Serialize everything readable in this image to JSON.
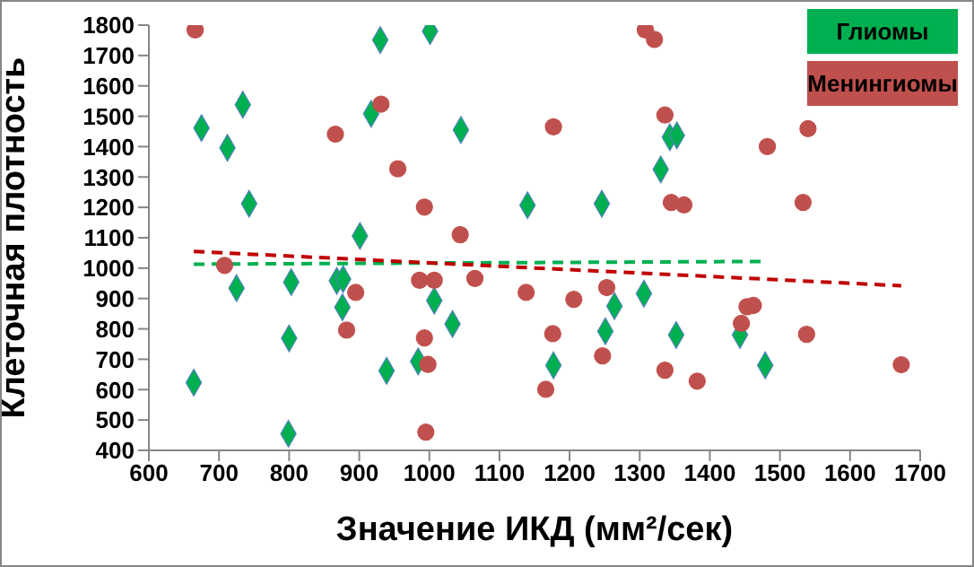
{
  "chart_data": {
    "type": "scatter",
    "xlabel": "Значение ИКД (мм²/сек)",
    "ylabel": "Клеточная плотность",
    "xlim": [
      600,
      1700
    ],
    "xticks": [
      600,
      700,
      800,
      900,
      1000,
      1100,
      1200,
      1300,
      1400,
      1500,
      1600,
      1700
    ],
    "ylim": [
      400,
      1800
    ],
    "yticks": [
      400,
      500,
      600,
      700,
      800,
      900,
      1000,
      1100,
      1200,
      1300,
      1400,
      1500,
      1600,
      1700,
      1800
    ],
    "grid": false,
    "legend": "top right",
    "series": [
      {
        "name": "Глиомы",
        "color": "#00b050",
        "marker": "diamond",
        "x": [
          930,
          1001,
          734,
          675,
          917,
          1045,
          712,
          743,
          1140,
          901,
          1246,
          1343,
          1353,
          1330,
          664,
          725,
          803,
          868,
          877,
          876,
          800,
          799,
          939,
          1007,
          1033,
          984,
          1177,
          1251,
          1264,
          1306,
          1352,
          1443,
          1479
        ],
        "values": [
          1751,
          1780,
          1538,
          1461,
          1508,
          1455,
          1396,
          1212,
          1207,
          1106,
          1212,
          1431,
          1437,
          1325,
          623,
          934,
          954,
          958,
          964,
          871,
          769,
          455,
          662,
          893,
          816,
          693,
          680,
          792,
          875,
          916,
          780,
          780,
          680
        ]
      },
      {
        "name": "Менингиомы",
        "color": "#c0504d",
        "marker": "circle",
        "x": [
          666,
          866,
          931,
          955,
          993,
          1044,
          1177,
          1308,
          1321,
          1336,
          1540,
          1482,
          1345,
          1363,
          1533,
          708,
          895,
          882,
          986,
          1007,
          1065,
          993,
          998,
          995,
          1138,
          1176,
          1166,
          1206,
          1253,
          1247,
          1336,
          1382,
          1453,
          1462,
          1445,
          1538,
          1673
        ],
        "values": [
          1784,
          1441,
          1540,
          1327,
          1201,
          1110,
          1465,
          1784,
          1753,
          1504,
          1459,
          1400,
          1216,
          1208,
          1216,
          1009,
          920,
          796,
          960,
          960,
          966,
          770,
          683,
          460,
          920,
          784,
          601,
          897,
          936,
          711,
          664,
          628,
          873,
          877,
          818,
          782,
          682
        ]
      },
      {
        "type": "line",
        "color": "#00b050",
        "line_style": "dashed",
        "marker": "none",
        "x": [
          664,
          1479
        ],
        "values": [
          1013,
          1022
        ]
      },
      {
        "type": "line",
        "color": "#c00000",
        "line_style": "dashed",
        "marker": "none",
        "x": [
          664,
          1673
        ],
        "values": [
          1055,
          942
        ]
      }
    ]
  }
}
